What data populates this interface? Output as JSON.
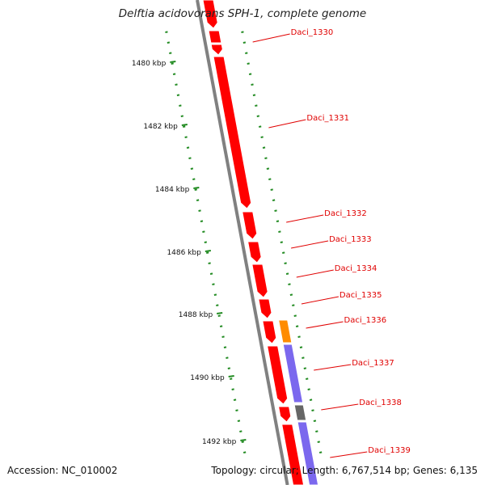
{
  "title": "Delftia acidovorans SPH-1, complete genome",
  "accession_label": "Accession: NC_010002",
  "topology_label": "Topology: circular; Length: 6,767,514 bp; Genes: 6,135",
  "colors": {
    "backbone": "#808080",
    "gene_forward": "#ff0000",
    "gene_orange": "#ff8c00",
    "gene_purple": "#7b68ee",
    "gene_gray": "#666666",
    "gc_skew": "#228b22",
    "gene_label": "#e00000"
  },
  "kbp_ticks": [
    {
      "label": "1480 kbp"
    },
    {
      "label": "1482 kbp"
    },
    {
      "label": "1484 kbp"
    },
    {
      "label": "1486 kbp"
    },
    {
      "label": "1488 kbp"
    },
    {
      "label": "1490 kbp"
    },
    {
      "label": "1492 kbp"
    }
  ],
  "gene_labels": [
    {
      "name": "Daci_1330"
    },
    {
      "name": "Daci_1331"
    },
    {
      "name": "Daci_1332"
    },
    {
      "name": "Daci_1333"
    },
    {
      "name": "Daci_1334"
    },
    {
      "name": "Daci_1335"
    },
    {
      "name": "Daci_1336"
    },
    {
      "name": "Daci_1337"
    },
    {
      "name": "Daci_1338"
    },
    {
      "name": "Daci_1339"
    }
  ]
}
